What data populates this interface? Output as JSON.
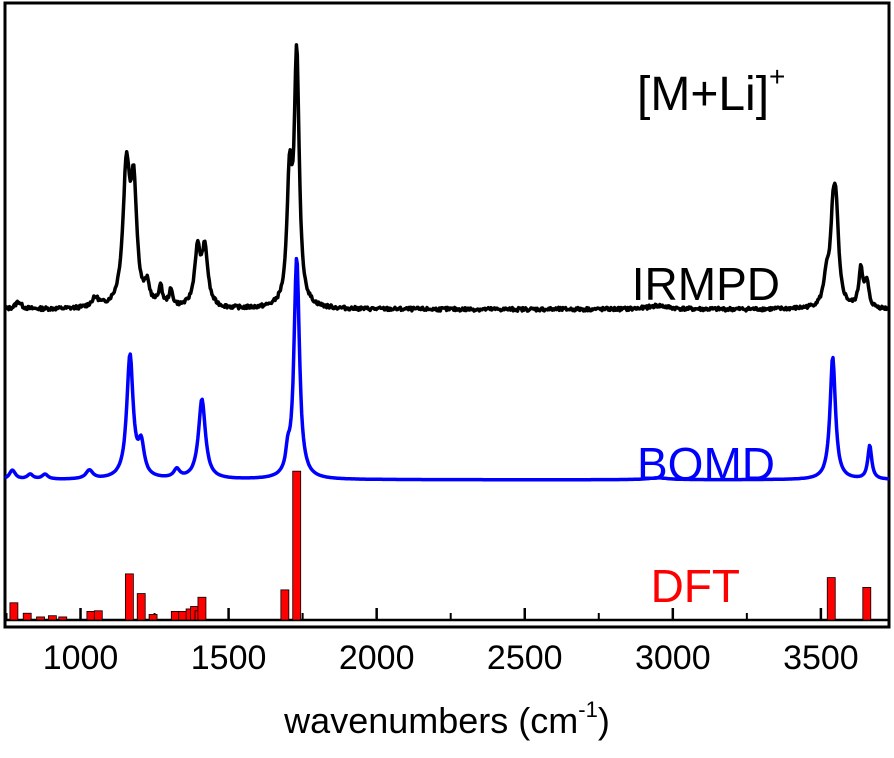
{
  "chart_data": {
    "type": "line",
    "title": "[M+Li]",
    "title_superscript": "+",
    "xlabel": "wavenumbers (cm",
    "xlabel_superscript": "-1",
    "xlabel_suffix": ")",
    "xlim": [
      745,
      3730
    ],
    "xticks": [
      1000,
      1500,
      2000,
      2500,
      3000,
      3500
    ],
    "xtick_labels": [
      "1000",
      "1500",
      "2000",
      "2500",
      "3000",
      "3500"
    ],
    "y_axis_labels_shown": false,
    "ylim": [
      0,
      1
    ],
    "grid": false,
    "series": [
      {
        "name": "IRMPD",
        "color": "#000000",
        "baseline": 0.505,
        "peaks": [
          {
            "x": 790,
            "h": 0.012,
            "w": 12
          },
          {
            "x": 1050,
            "h": 0.015,
            "w": 15
          },
          {
            "x": 1155,
            "h": 0.22,
            "w": 14
          },
          {
            "x": 1180,
            "h": 0.18,
            "w": 12
          },
          {
            "x": 1225,
            "h": 0.03,
            "w": 10
          },
          {
            "x": 1270,
            "h": 0.03,
            "w": 8
          },
          {
            "x": 1305,
            "h": 0.025,
            "w": 8
          },
          {
            "x": 1395,
            "h": 0.09,
            "w": 12
          },
          {
            "x": 1420,
            "h": 0.09,
            "w": 12
          },
          {
            "x": 1706,
            "h": 0.2,
            "w": 10
          },
          {
            "x": 1730,
            "h": 0.4,
            "w": 10
          },
          {
            "x": 2950,
            "h": 0.006,
            "w": 40
          },
          {
            "x": 3518,
            "h": 0.04,
            "w": 10
          },
          {
            "x": 3542,
            "h": 0.14,
            "w": 12
          },
          {
            "x": 3552,
            "h": 0.1,
            "w": 10
          },
          {
            "x": 3635,
            "h": 0.065,
            "w": 8
          },
          {
            "x": 3655,
            "h": 0.04,
            "w": 8
          }
        ]
      },
      {
        "name": "BOMD",
        "color": "#0000ff",
        "baseline": 0.228,
        "peaks": [
          {
            "x": 770,
            "h": 0.015,
            "w": 12
          },
          {
            "x": 830,
            "h": 0.008,
            "w": 12
          },
          {
            "x": 880,
            "h": 0.008,
            "w": 12
          },
          {
            "x": 1030,
            "h": 0.014,
            "w": 14
          },
          {
            "x": 1167,
            "h": 0.2,
            "w": 13
          },
          {
            "x": 1205,
            "h": 0.05,
            "w": 12
          },
          {
            "x": 1325,
            "h": 0.014,
            "w": 12
          },
          {
            "x": 1410,
            "h": 0.13,
            "w": 14
          },
          {
            "x": 1700,
            "h": 0.03,
            "w": 8
          },
          {
            "x": 1730,
            "h": 0.36,
            "w": 11
          },
          {
            "x": 2950,
            "h": 0.003,
            "w": 40
          },
          {
            "x": 3540,
            "h": 0.2,
            "w": 11
          },
          {
            "x": 3665,
            "h": 0.055,
            "w": 8
          }
        ]
      },
      {
        "name": "DFT",
        "type": "bar",
        "color": "#ff0000",
        "x": [
          775,
          820,
          865,
          905,
          940,
          1035,
          1060,
          1165,
          1205,
          1245,
          1320,
          1345,
          1370,
          1385,
          1400,
          1410,
          1690,
          1730,
          3535,
          3655
        ],
        "values": [
          0.028,
          0.011,
          0.005,
          0.007,
          0.005,
          0.014,
          0.015,
          0.075,
          0.043,
          0.009,
          0.014,
          0.014,
          0.018,
          0.022,
          0.015,
          0.037,
          0.049,
          0.242,
          0.069,
          0.053
        ]
      }
    ]
  }
}
